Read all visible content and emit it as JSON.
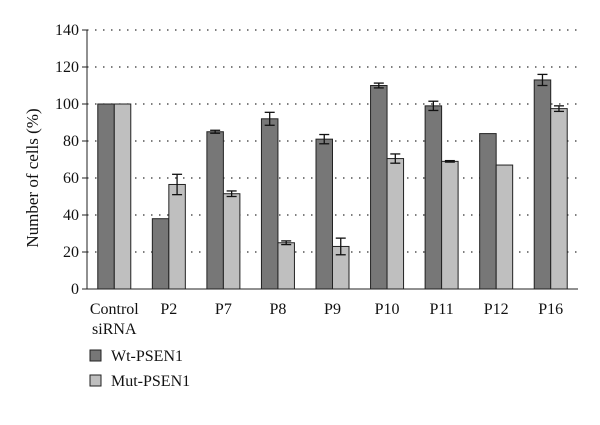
{
  "chart_data": {
    "type": "bar",
    "title": "",
    "xlabel": "",
    "ylabel": "Number of cells (%)",
    "ylim": [
      0,
      140
    ],
    "yticks": [
      0,
      20,
      40,
      60,
      80,
      100,
      120,
      140
    ],
    "grid": "horizontal-dotted",
    "legend_position": "bottom-left",
    "categories": [
      [
        "Control",
        "siRNA"
      ],
      [
        "P2"
      ],
      [
        "P7"
      ],
      [
        "P8"
      ],
      [
        "P9"
      ],
      [
        "P10"
      ],
      [
        "P11"
      ],
      [
        "P12"
      ],
      [
        "P16"
      ]
    ],
    "series": [
      {
        "name": "Wt-PSEN1",
        "color": "#777777",
        "values": [
          100,
          38,
          85,
          92,
          81,
          110,
          99,
          84,
          113
        ],
        "errors": [
          0,
          0,
          0.8,
          3.5,
          2.5,
          1.3,
          2.5,
          0,
          3
        ]
      },
      {
        "name": "Mut-PSEN1",
        "color": "#bfbfbf",
        "values": [
          100,
          56.5,
          51.5,
          25,
          23,
          70.5,
          69,
          67,
          97.5
        ],
        "errors": [
          0,
          5.5,
          1.5,
          1,
          4.5,
          2.5,
          0.4,
          0,
          1.5
        ]
      }
    ]
  }
}
